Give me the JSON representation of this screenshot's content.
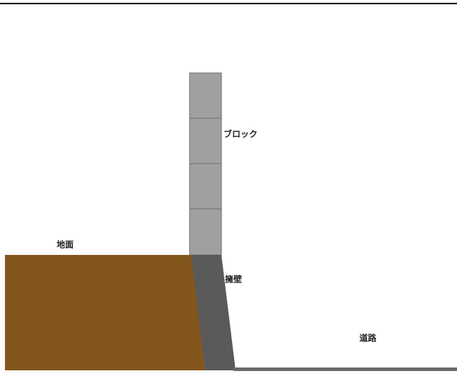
{
  "labels": {
    "block": "ブロック",
    "ground": "地面",
    "retaining_wall": "擁壁",
    "road": "道路"
  }
}
